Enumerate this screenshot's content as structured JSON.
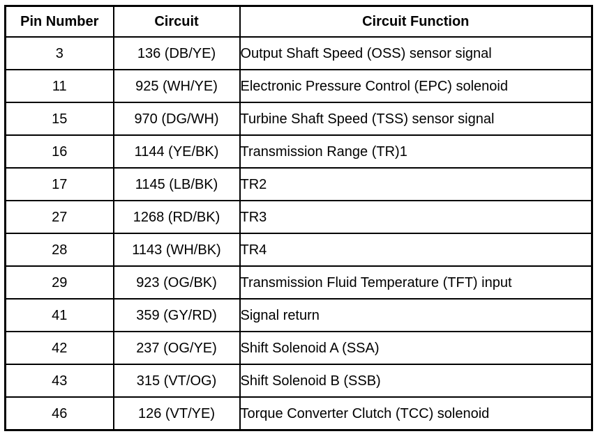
{
  "page": {
    "background_color": "#ffffff",
    "text_color": "#000000",
    "border_color": "#000000"
  },
  "table": {
    "headers": {
      "pin": "Pin Number",
      "circuit": "Circuit",
      "function": "Circuit Function"
    },
    "rows": [
      {
        "pin": "3",
        "circuit": "136 (DB/YE)",
        "function": "Output Shaft Speed (OSS) sensor signal"
      },
      {
        "pin": "11",
        "circuit": "925 (WH/YE)",
        "function": "Electronic Pressure Control (EPC) solenoid"
      },
      {
        "pin": "15",
        "circuit": "970 (DG/WH)",
        "function": "Turbine Shaft Speed (TSS) sensor signal"
      },
      {
        "pin": "16",
        "circuit": "1144 (YE/BK)",
        "function": "Transmission Range (TR)1"
      },
      {
        "pin": "17",
        "circuit": "1145 (LB/BK)",
        "function": "TR2"
      },
      {
        "pin": "27",
        "circuit": "1268 (RD/BK)",
        "function": "TR3"
      },
      {
        "pin": "28",
        "circuit": "1143 (WH/BK)",
        "function": "TR4"
      },
      {
        "pin": "29",
        "circuit": "923 (OG/BK)",
        "function": "Transmission Fluid Temperature (TFT) input"
      },
      {
        "pin": "41",
        "circuit": "359 (GY/RD)",
        "function": "Signal return"
      },
      {
        "pin": "42",
        "circuit": "237 (OG/YE)",
        "function": "Shift Solenoid A (SSA)"
      },
      {
        "pin": "43",
        "circuit": "315 (VT/OG)",
        "function": "Shift Solenoid B (SSB)"
      },
      {
        "pin": "46",
        "circuit": "126 (VT/YE)",
        "function": "Torque Converter Clutch (TCC) solenoid"
      }
    ]
  }
}
